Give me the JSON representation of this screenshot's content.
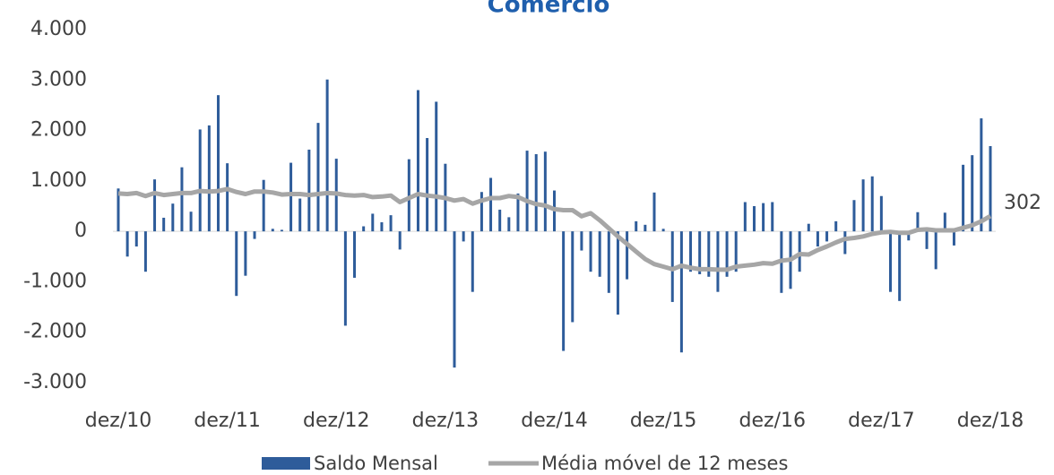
{
  "chart_data": {
    "type": "bar",
    "title": "Comércio",
    "categories": [
      "dez/10",
      null,
      null,
      null,
      null,
      null,
      null,
      null,
      null,
      null,
      null,
      null,
      "dez/11",
      null,
      null,
      null,
      null,
      null,
      null,
      null,
      null,
      null,
      null,
      null,
      "dez/12",
      null,
      null,
      null,
      null,
      null,
      null,
      null,
      null,
      null,
      null,
      null,
      "dez/13",
      null,
      null,
      null,
      null,
      null,
      null,
      null,
      null,
      null,
      null,
      null,
      "dez/14",
      null,
      null,
      null,
      null,
      null,
      null,
      null,
      null,
      null,
      null,
      null,
      "dez/15",
      null,
      null,
      null,
      null,
      null,
      null,
      null,
      null,
      null,
      null,
      null,
      "dez/16",
      null,
      null,
      null,
      null,
      null,
      null,
      null,
      null,
      null,
      null,
      null,
      "dez/17",
      null,
      null,
      null,
      null,
      null,
      null,
      null,
      null,
      null,
      null,
      null,
      "dez/18"
    ],
    "series": [
      {
        "name": "Saldo Mensal",
        "type": "bar",
        "color": "#2e5c9a",
        "values": [
          850,
          -500,
          -300,
          -800,
          1030,
          270,
          550,
          1270,
          390,
          2020,
          2100,
          2700,
          1350,
          -1280,
          -880,
          -150,
          1020,
          50,
          30,
          1360,
          650,
          1620,
          2150,
          3010,
          1440,
          -1870,
          -920,
          100,
          350,
          180,
          320,
          -360,
          1430,
          2800,
          1850,
          2570,
          1340,
          -2700,
          -200,
          -1200,
          780,
          1060,
          430,
          280,
          750,
          1600,
          1530,
          1580,
          810,
          -2370,
          -1800,
          -380,
          -800,
          -900,
          -1220,
          -1650,
          -950,
          200,
          130,
          770,
          50,
          -1400,
          -2400,
          -800,
          -850,
          -900,
          -1200,
          -900,
          -800,
          580,
          500,
          560,
          580,
          -1220,
          -1140,
          -800,
          150,
          -300,
          -200,
          200,
          -450,
          620,
          1030,
          1090,
          700,
          -1200,
          -1380,
          -180,
          380,
          -350,
          -750,
          370,
          -280,
          1320,
          1510,
          2240,
          1690
        ]
      },
      {
        "name": "Média móvel de 12 meses",
        "type": "line",
        "color": "#a6a6a6",
        "values": [
          750,
          740,
          760,
          700,
          760,
          720,
          740,
          760,
          760,
          800,
          790,
          800,
          840,
          780,
          740,
          790,
          790,
          770,
          730,
          740,
          740,
          720,
          740,
          760,
          750,
          720,
          710,
          720,
          680,
          690,
          710,
          580,
          660,
          740,
          710,
          690,
          660,
          610,
          640,
          550,
          610,
          660,
          660,
          700,
          680,
          600,
          540,
          510,
          440,
          420,
          420,
          300,
          360,
          220,
          60,
          -100,
          -250,
          -400,
          -550,
          -650,
          -700,
          -750,
          -680,
          -720,
          -750,
          -750,
          -760,
          -760,
          -700,
          -680,
          -660,
          -630,
          -640,
          -580,
          -560,
          -450,
          -460,
          -370,
          -300,
          -220,
          -150,
          -130,
          -100,
          -50,
          -20,
          -10,
          -30,
          -30,
          30,
          40,
          20,
          20,
          20,
          70,
          120,
          200,
          302
        ]
      }
    ],
    "ylim": [
      -3000,
      4000
    ],
    "yticks": [
      {
        "value": -3000,
        "label": "-3.000"
      },
      {
        "value": -2000,
        "label": "-2.000"
      },
      {
        "value": -1000,
        "label": "-1.000"
      },
      0,
      {
        "value": 1000,
        "label": "1.000"
      },
      {
        "value": 2000,
        "label": "2.000"
      },
      {
        "value": 3000,
        "label": "3.000"
      },
      {
        "value": 4000,
        "label": "4.000"
      }
    ],
    "grid": false
  }
}
